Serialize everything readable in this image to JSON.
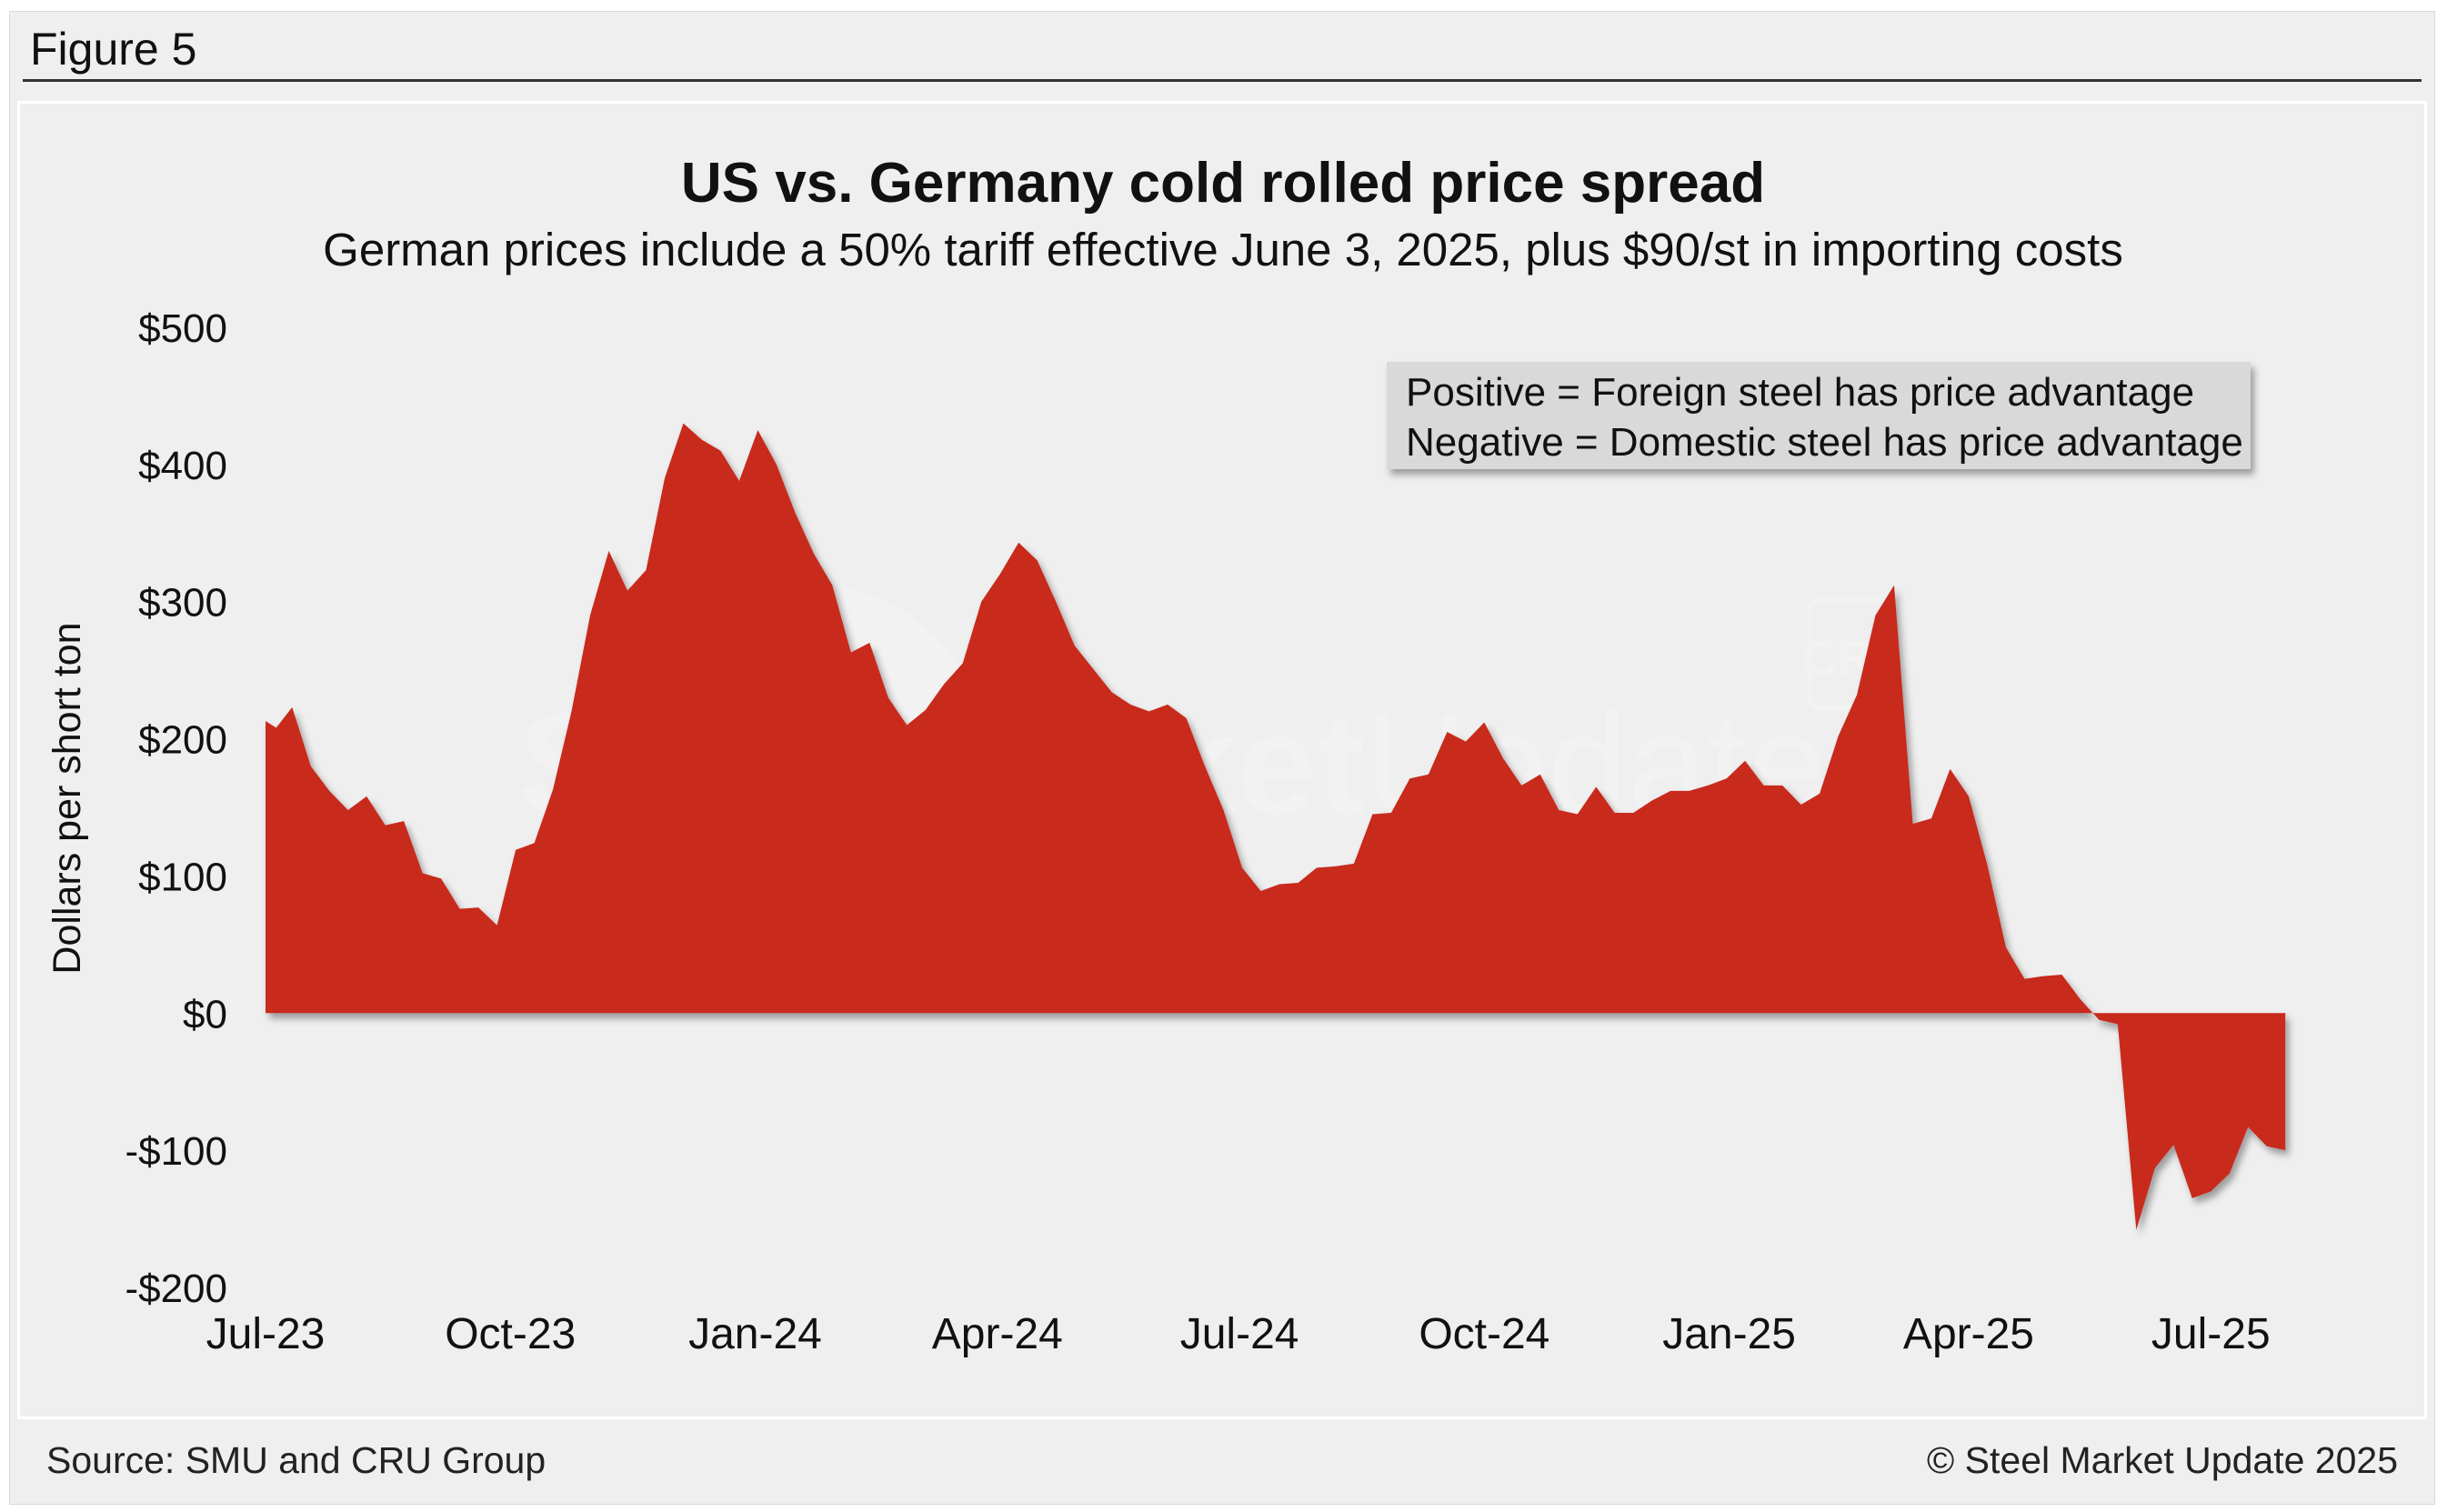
{
  "figure_label": "Figure 5",
  "source": "Source: SMU and CRU Group",
  "copyright": "© Steel Market Update 2025",
  "watermark": {
    "text_bold": "Steel Market",
    "text_light": "Update",
    "badge": "CRU"
  },
  "colors": {
    "area_fill": "#c8291f",
    "background": "#efefef",
    "legend_box": "#d9d9d9",
    "text": "#111111"
  },
  "chart_data": {
    "type": "area",
    "title": "US vs. Germany cold rolled price spread",
    "subtitle": "German prices include a 50% tariff effective June 3, 2025, plus $90/st in importing costs",
    "ylabel": "Dollars per short ton",
    "xlabel": "",
    "ylim": [
      -200,
      500
    ],
    "yticks": [
      500,
      400,
      300,
      200,
      100,
      0,
      -100,
      -200
    ],
    "ytick_labels": [
      "$500",
      "$400",
      "$300",
      "$200",
      "$100",
      "$0",
      "-$100",
      "-$200"
    ],
    "xlim": [
      "2023-07-01",
      "2025-08-01"
    ],
    "xtick_dates": [
      "2023-07-01",
      "2023-10-01",
      "2024-01-01",
      "2024-04-01",
      "2024-07-01",
      "2024-10-01",
      "2025-01-01",
      "2025-04-01",
      "2025-07-01"
    ],
    "xtick_labels": [
      "Jul-23",
      "Oct-23",
      "Jan-24",
      "Apr-24",
      "Jul-24",
      "Oct-24",
      "Jan-25",
      "Apr-25",
      "Jul-25"
    ],
    "grid": false,
    "legend": "none",
    "annotation": [
      "Positive = Foreign steel has price advantage",
      "Negative = Domestic steel has price advantage"
    ],
    "annotation_placement": "top-right",
    "series": [
      {
        "x": [
          "2023-07-01",
          "2023-07-05",
          "2023-07-11",
          "2023-07-18",
          "2023-07-25",
          "2023-08-01",
          "2023-08-08",
          "2023-08-15",
          "2023-08-22",
          "2023-08-29",
          "2023-09-05",
          "2023-09-12",
          "2023-09-19",
          "2023-09-26",
          "2023-10-03",
          "2023-10-10",
          "2023-10-17",
          "2023-10-24",
          "2023-10-31",
          "2023-11-07",
          "2023-11-14",
          "2023-11-21",
          "2023-11-28",
          "2023-12-05",
          "2023-12-12",
          "2023-12-19",
          "2023-12-26",
          "2024-01-02",
          "2024-01-09",
          "2024-01-16",
          "2024-01-23",
          "2024-01-30",
          "2024-02-06",
          "2024-02-13",
          "2024-02-20",
          "2024-02-27",
          "2024-03-05",
          "2024-03-12",
          "2024-03-19",
          "2024-03-26",
          "2024-04-02",
          "2024-04-09",
          "2024-04-16",
          "2024-04-23",
          "2024-04-30",
          "2024-05-07",
          "2024-05-14",
          "2024-05-21",
          "2024-05-28",
          "2024-06-04",
          "2024-06-11",
          "2024-06-18",
          "2024-06-25",
          "2024-07-02",
          "2024-07-09",
          "2024-07-16",
          "2024-07-23",
          "2024-07-30",
          "2024-08-06",
          "2024-08-13",
          "2024-08-20",
          "2024-08-27",
          "2024-09-03",
          "2024-09-10",
          "2024-09-17",
          "2024-09-24",
          "2024-10-01",
          "2024-10-08",
          "2024-10-15",
          "2024-10-22",
          "2024-10-29",
          "2024-11-05",
          "2024-11-12",
          "2024-11-19",
          "2024-11-26",
          "2024-12-03",
          "2024-12-10",
          "2024-12-17",
          "2024-12-24",
          "2024-12-31",
          "2025-01-07",
          "2025-01-14",
          "2025-01-21",
          "2025-01-28",
          "2025-02-04",
          "2025-02-11",
          "2025-02-18",
          "2025-02-25",
          "2025-03-04",
          "2025-03-11",
          "2025-03-18",
          "2025-03-25",
          "2025-04-01",
          "2025-04-08",
          "2025-04-15",
          "2025-04-22",
          "2025-04-29",
          "2025-05-06",
          "2025-05-13",
          "2025-05-20",
          "2025-05-27",
          "2025-06-03",
          "2025-06-10",
          "2025-06-17",
          "2025-06-24",
          "2025-07-01",
          "2025-07-08",
          "2025-07-15",
          "2025-07-22",
          "2025-07-29"
        ],
        "values": [
          213,
          208,
          223,
          180,
          162,
          148,
          158,
          137,
          140,
          102,
          98,
          76,
          77,
          64,
          119,
          124,
          163,
          220,
          290,
          337,
          308,
          323,
          390,
          430,
          418,
          410,
          388,
          425,
          400,
          365,
          335,
          312,
          263,
          270,
          230,
          210,
          221,
          240,
          255,
          300,
          320,
          343,
          330,
          300,
          268,
          251,
          234,
          225,
          220,
          225,
          215,
          180,
          148,
          106,
          89,
          94,
          95,
          106,
          107,
          109,
          145,
          146,
          171,
          174,
          205,
          198,
          212,
          186,
          166,
          174,
          148,
          145,
          165,
          146,
          146,
          155,
          162,
          162,
          166,
          171,
          184,
          166,
          166,
          152,
          160,
          202,
          232,
          290,
          312,
          138,
          142,
          178,
          158,
          108,
          48,
          25,
          27,
          28,
          10,
          -5,
          -8,
          -158,
          -113,
          -96,
          -135,
          -130,
          -117,
          -83,
          -97,
          -100
        ]
      }
    ]
  }
}
